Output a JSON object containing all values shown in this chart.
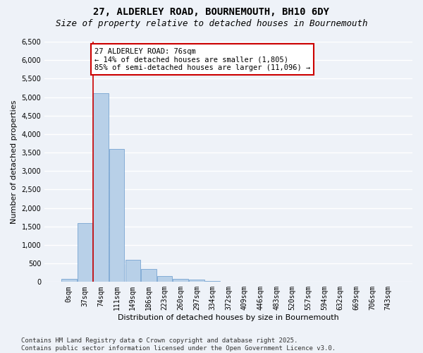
{
  "title_line1": "27, ALDERLEY ROAD, BOURNEMOUTH, BH10 6DY",
  "title_line2": "Size of property relative to detached houses in Bournemouth",
  "xlabel": "Distribution of detached houses by size in Bournemouth",
  "ylabel": "Number of detached properties",
  "bar_color": "#b8d0e8",
  "bar_edge_color": "#6699cc",
  "annotation_line_color": "#cc0000",
  "annotation_box_color": "#cc0000",
  "bin_labels": [
    "0sqm",
    "37sqm",
    "74sqm",
    "111sqm",
    "149sqm",
    "186sqm",
    "223sqm",
    "260sqm",
    "297sqm",
    "334sqm",
    "372sqm",
    "409sqm",
    "446sqm",
    "483sqm",
    "520sqm",
    "557sqm",
    "594sqm",
    "632sqm",
    "669sqm",
    "706sqm",
    "743sqm"
  ],
  "bar_values": [
    80,
    1600,
    5100,
    3600,
    600,
    350,
    150,
    80,
    60,
    30,
    10,
    5,
    2,
    1,
    0,
    0,
    0,
    0,
    0,
    0,
    0
  ],
  "property_bin_index": 2,
  "annotation_text": "27 ALDERLEY ROAD: 76sqm\n← 14% of detached houses are smaller (1,805)\n85% of semi-detached houses are larger (11,096) →",
  "ylim": [
    0,
    6500
  ],
  "yticks": [
    0,
    500,
    1000,
    1500,
    2000,
    2500,
    3000,
    3500,
    4000,
    4500,
    5000,
    5500,
    6000,
    6500
  ],
  "footer_text": "Contains HM Land Registry data © Crown copyright and database right 2025.\nContains public sector information licensed under the Open Government Licence v3.0.",
  "background_color": "#eef2f8",
  "plot_background_color": "#eef2f8",
  "grid_color": "#ffffff",
  "title_fontsize": 10,
  "subtitle_fontsize": 9,
  "axis_label_fontsize": 8,
  "tick_fontsize": 7,
  "annotation_fontsize": 7.5,
  "footer_fontsize": 6.5
}
